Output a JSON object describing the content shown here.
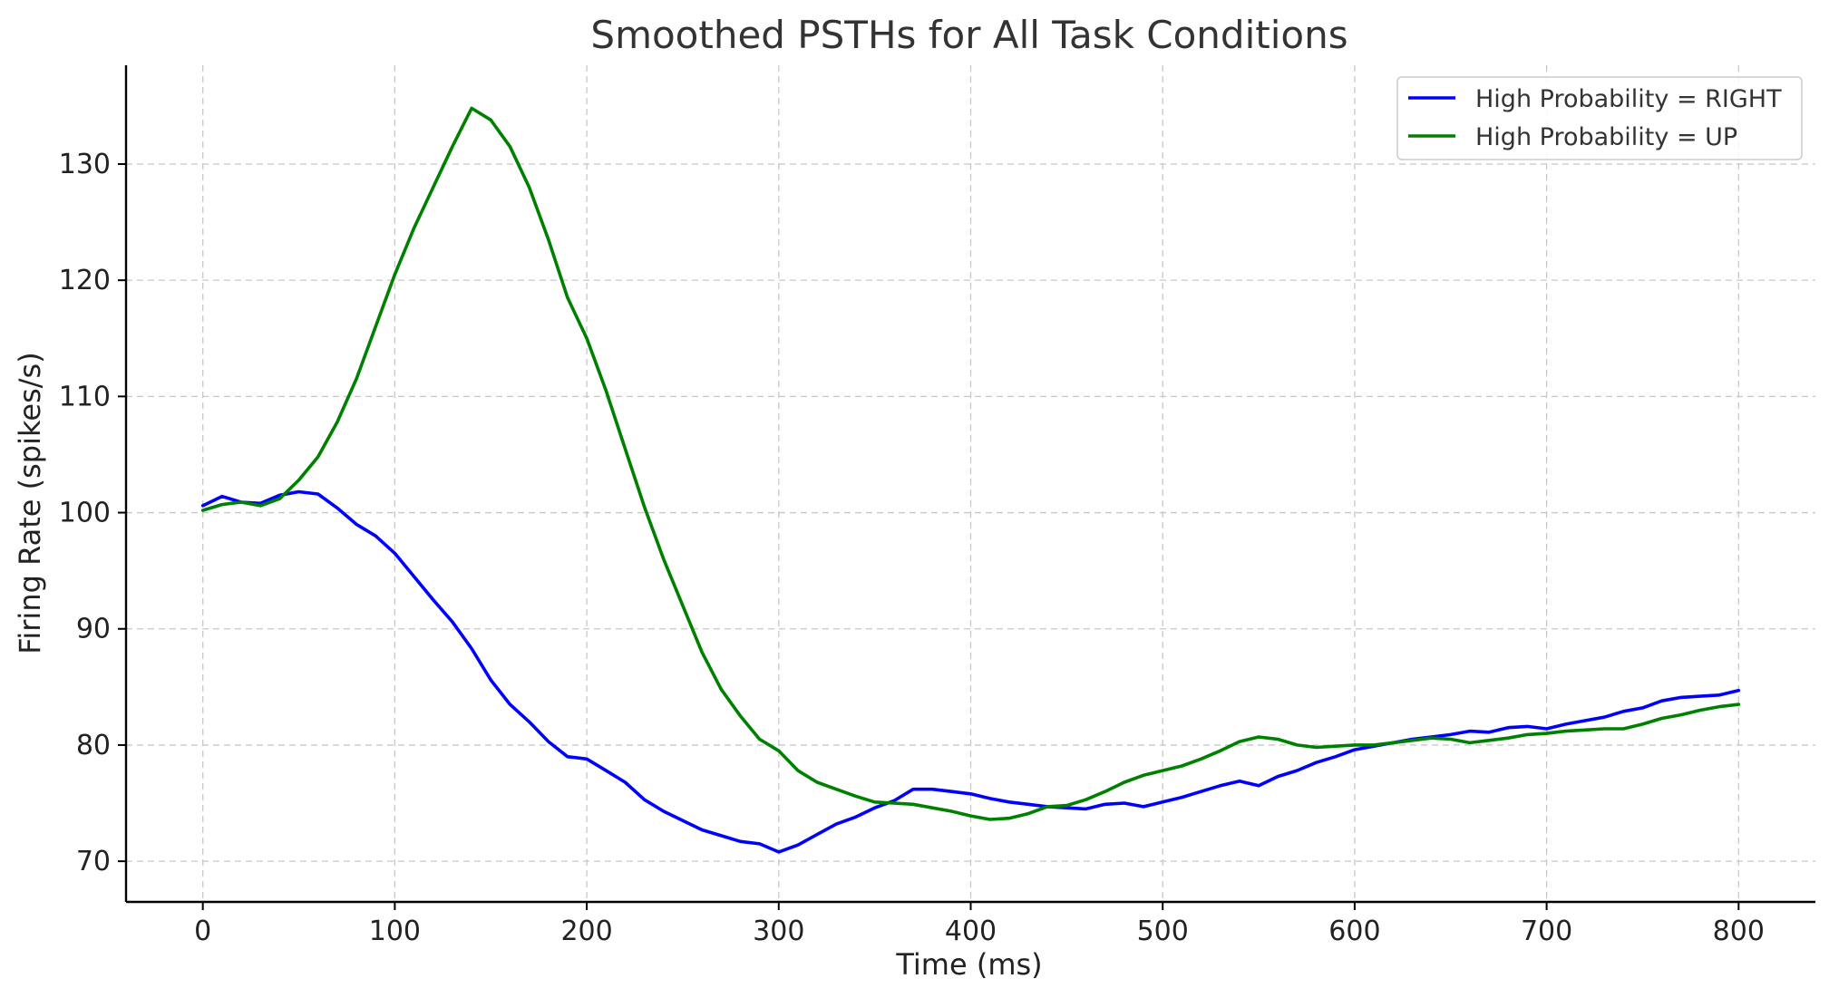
{
  "chart_data": {
    "type": "line",
    "title": "Smoothed PSTHs for All Task Conditions",
    "xlabel": "Time (ms)",
    "ylabel": "Firing Rate (spikes/s)",
    "xlim": [
      -40,
      840
    ],
    "ylim": [
      66.5,
      138.5
    ],
    "xticks": [
      0,
      100,
      200,
      300,
      400,
      500,
      600,
      700,
      800
    ],
    "yticks": [
      70,
      80,
      90,
      100,
      110,
      120,
      130
    ],
    "grid": true,
    "legend_position": "top-right",
    "series": [
      {
        "name": "High Probability = RIGHT",
        "color": "#0000ff",
        "x": [
          0,
          10,
          20,
          30,
          40,
          50,
          60,
          70,
          80,
          90,
          100,
          110,
          120,
          130,
          140,
          150,
          160,
          170,
          180,
          190,
          200,
          210,
          220,
          230,
          240,
          250,
          260,
          270,
          280,
          290,
          300,
          310,
          320,
          330,
          340,
          350,
          360,
          370,
          380,
          390,
          400,
          410,
          420,
          430,
          440,
          450,
          460,
          470,
          480,
          490,
          500,
          510,
          520,
          530,
          540,
          550,
          560,
          570,
          580,
          590,
          600,
          610,
          620,
          630,
          640,
          650,
          660,
          670,
          680,
          690,
          700,
          710,
          720,
          730,
          740,
          750,
          760,
          770,
          780,
          790,
          800
        ],
        "y": [
          100.6,
          101.4,
          100.9,
          100.8,
          101.5,
          101.8,
          101.6,
          100.4,
          99.0,
          98.0,
          96.5,
          94.5,
          92.5,
          90.6,
          88.3,
          85.6,
          83.5,
          82.0,
          80.3,
          79.0,
          78.8,
          77.8,
          76.8,
          75.3,
          74.3,
          73.5,
          72.7,
          72.2,
          71.7,
          71.5,
          70.8,
          71.4,
          72.3,
          73.2,
          73.8,
          74.6,
          75.2,
          76.2,
          76.2,
          76.0,
          75.8,
          75.4,
          75.1,
          74.9,
          74.7,
          74.6,
          74.5,
          74.9,
          75.0,
          74.7,
          75.1,
          75.5,
          76.0,
          76.5,
          76.9,
          76.5,
          77.3,
          77.8,
          78.5,
          79.0,
          79.6,
          79.9,
          80.2,
          80.5,
          80.7,
          80.9,
          81.2,
          81.1,
          81.5,
          81.6,
          81.4,
          81.8,
          82.1,
          82.4,
          82.9,
          83.2,
          83.8,
          84.1,
          84.2,
          84.3,
          84.7
        ]
      },
      {
        "name": "High Probability = UP",
        "color": "#008000",
        "x": [
          0,
          10,
          20,
          30,
          40,
          50,
          60,
          70,
          80,
          90,
          100,
          110,
          120,
          130,
          140,
          150,
          160,
          170,
          180,
          190,
          200,
          210,
          220,
          230,
          240,
          250,
          260,
          270,
          280,
          290,
          300,
          310,
          320,
          330,
          340,
          350,
          360,
          370,
          380,
          390,
          400,
          410,
          420,
          430,
          440,
          450,
          460,
          470,
          480,
          490,
          500,
          510,
          520,
          530,
          540,
          550,
          560,
          570,
          580,
          590,
          600,
          610,
          620,
          630,
          640,
          650,
          660,
          670,
          680,
          690,
          700,
          710,
          720,
          730,
          740,
          750,
          760,
          770,
          780,
          790,
          800
        ],
        "y": [
          100.2,
          100.7,
          100.9,
          100.6,
          101.2,
          102.8,
          104.8,
          107.8,
          111.5,
          116.0,
          120.5,
          124.5,
          128.0,
          131.5,
          134.8,
          133.8,
          131.5,
          128.0,
          123.5,
          118.5,
          115.0,
          110.5,
          105.5,
          100.5,
          96.0,
          92.0,
          88.0,
          84.8,
          82.5,
          80.5,
          79.5,
          77.8,
          76.8,
          76.2,
          75.6,
          75.1,
          75.0,
          74.9,
          74.6,
          74.3,
          73.9,
          73.6,
          73.7,
          74.1,
          74.7,
          74.8,
          75.3,
          76.0,
          76.8,
          77.4,
          77.8,
          78.2,
          78.8,
          79.5,
          80.3,
          80.7,
          80.5,
          80.0,
          79.8,
          79.9,
          80.0,
          80.0,
          80.2,
          80.4,
          80.6,
          80.5,
          80.2,
          80.4,
          80.6,
          80.9,
          81.0,
          81.2,
          81.3,
          81.4,
          81.4,
          81.8,
          82.3,
          82.6,
          83.0,
          83.3,
          83.5
        ]
      }
    ]
  }
}
